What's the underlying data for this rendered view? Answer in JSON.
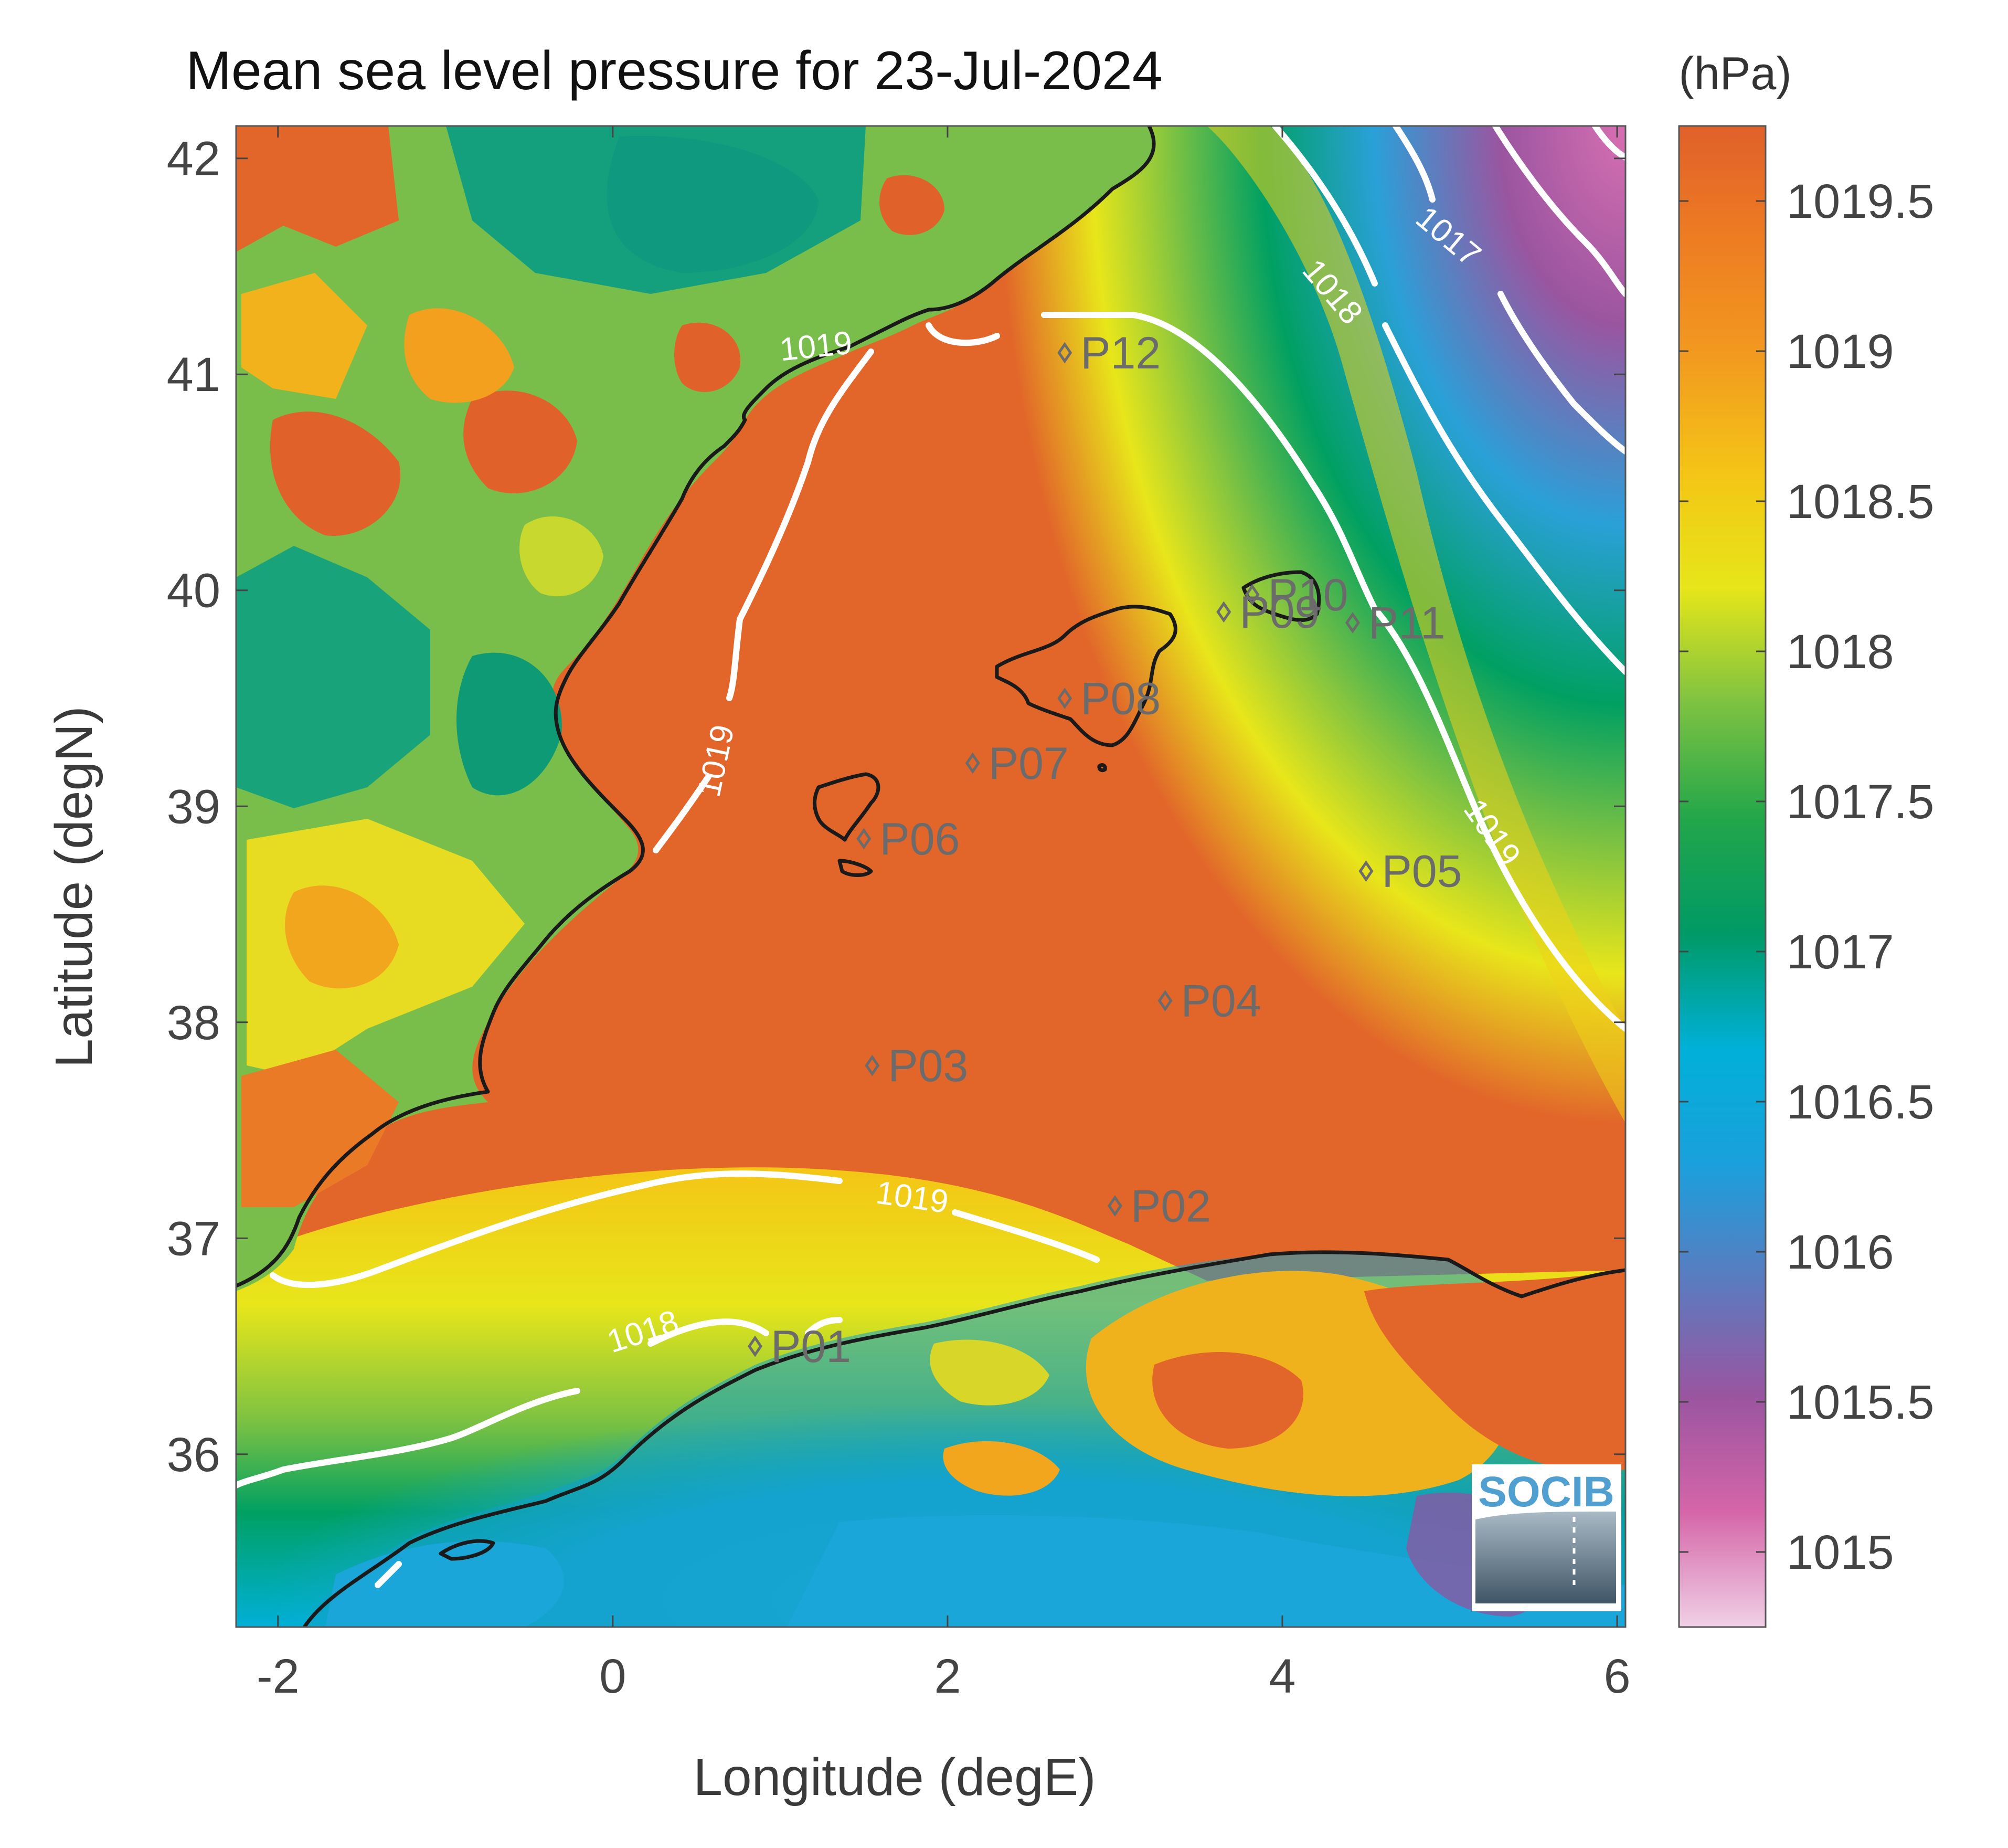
{
  "figure": {
    "title": "Mean sea level pressure for 23-Jul-2024",
    "xlabel": "Longitude (degE)",
    "ylabel": "Latitude (degN)",
    "colorbar_unit": "(hPa)",
    "logo_text": "SOCIB"
  },
  "axes": {
    "xlim": [
      -2.25,
      6.05
    ],
    "ylim": [
      35.2,
      42.15
    ],
    "x_ticks": [
      -2,
      0,
      2,
      4,
      6
    ],
    "x_tick_labels": [
      "-2",
      "0",
      "2",
      "4",
      "6"
    ],
    "y_ticks": [
      36,
      37,
      38,
      39,
      40,
      41,
      42
    ],
    "y_tick_labels": [
      "36",
      "37",
      "38",
      "39",
      "40",
      "41",
      "42"
    ]
  },
  "colorbar": {
    "range": [
      1014.75,
      1019.75
    ],
    "ticks": [
      1015,
      1015.5,
      1016,
      1016.5,
      1017,
      1017.5,
      1018,
      1018.5,
      1019,
      1019.5
    ],
    "tick_labels": [
      "1015",
      "1015.5",
      "1016",
      "1016.5",
      "1017",
      "1017.5",
      "1018",
      "1018.5",
      "1019",
      "1019.5"
    ],
    "colors": [
      "#f0d0e6",
      "#d565a8",
      "#9a55a0",
      "#5b7bbf",
      "#1ba0dc",
      "#00b0d8",
      "#009a66",
      "#22a64a",
      "#7dc242",
      "#e6e619",
      "#f4c516",
      "#f29a1f",
      "#ee7d22",
      "#e0602a"
    ]
  },
  "contours": {
    "color": "#ffffff",
    "labels": [
      {
        "text": "1019",
        "lon": 1.22,
        "lat": 41.08,
        "angle": -6
      },
      {
        "text": "1019",
        "lon": 0.68,
        "lat": 39.2,
        "angle": -78
      },
      {
        "text": "1019",
        "lon": 1.78,
        "lat": 37.14,
        "angle": 8
      },
      {
        "text": "1019",
        "lon": 5.2,
        "lat": 38.85,
        "angle": 55
      },
      {
        "text": "1018",
        "lon": 4.25,
        "lat": 41.35,
        "angle": 50
      },
      {
        "text": "1017",
        "lon": 4.95,
        "lat": 41.6,
        "angle": 40
      },
      {
        "text": "1018",
        "lon": 0.2,
        "lat": 36.52,
        "angle": -18
      }
    ]
  },
  "stations": [
    {
      "name": "P01",
      "lon": 0.85,
      "lat": 36.5
    },
    {
      "name": "P02",
      "lon": 3.0,
      "lat": 37.15
    },
    {
      "name": "P03",
      "lon": 1.55,
      "lat": 37.8
    },
    {
      "name": "P04",
      "lon": 3.3,
      "lat": 38.1
    },
    {
      "name": "P05",
      "lon": 4.5,
      "lat": 38.7
    },
    {
      "name": "P06",
      "lon": 1.5,
      "lat": 38.85
    },
    {
      "name": "P07",
      "lon": 2.15,
      "lat": 39.2
    },
    {
      "name": "P08",
      "lon": 2.7,
      "lat": 39.5
    },
    {
      "name": "P09",
      "lon": 3.65,
      "lat": 39.9
    },
    {
      "name": "P10",
      "lon": 3.82,
      "lat": 39.98
    },
    {
      "name": "P11",
      "lon": 4.42,
      "lat": 39.85
    },
    {
      "name": "P12",
      "lon": 2.7,
      "lat": 41.1
    }
  ]
}
